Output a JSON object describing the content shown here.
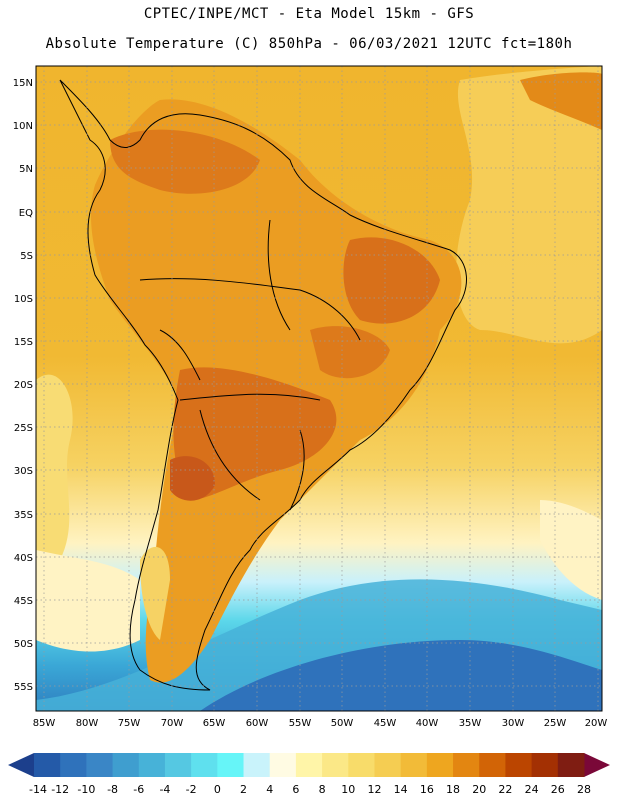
{
  "header": {
    "line1": "CPTEC/INPE/MCT -  Eta Model 15km - GFS",
    "line2": "Absolute Temperature (C) 850hPa - 06/03/2021 12UTC fct=180h"
  },
  "axes": {
    "lat_labels": [
      "15N",
      "10N",
      "5N",
      "EQ",
      "5S",
      "10S",
      "15S",
      "20S",
      "25S",
      "30S",
      "35S",
      "40S",
      "45S",
      "50S",
      "55S"
    ],
    "lon_labels": [
      "85W",
      "80W",
      "75W",
      "70W",
      "65W",
      "60W",
      "55W",
      "50W",
      "45W",
      "40W",
      "35W",
      "30W",
      "25W",
      "20W"
    ]
  },
  "colorbar": {
    "labels": [
      "-14",
      "-12",
      "-10",
      "-8",
      "-6",
      "-4",
      "-2",
      "0",
      "2",
      "4",
      "6",
      "8",
      "10",
      "12",
      "14",
      "16",
      "18",
      "20",
      "22",
      "24",
      "26",
      "28"
    ],
    "colors": [
      "#1c3f8c",
      "#245aa8",
      "#2f72bb",
      "#3a86c6",
      "#3f9ecf",
      "#47b2d8",
      "#55c8e2",
      "#5fe0ee",
      "#66f5f8",
      "#c9f3fb",
      "#fffbe3",
      "#fff5a8",
      "#fbe887",
      "#f8dc6a",
      "#f5cd52",
      "#f2bb38",
      "#eea61f",
      "#e38611",
      "#d26406",
      "#bb4500",
      "#a33003",
      "#7f1d12",
      "#7a0838"
    ]
  },
  "style": {
    "ocean_warm": "#f2bc3a",
    "ocean_mid": "#f6d264",
    "ocean_cool": "#fff4c8",
    "cold": "#3aa7d6",
    "land_hot": "#dc7216",
    "land_warm": "#eb9d22"
  }
}
